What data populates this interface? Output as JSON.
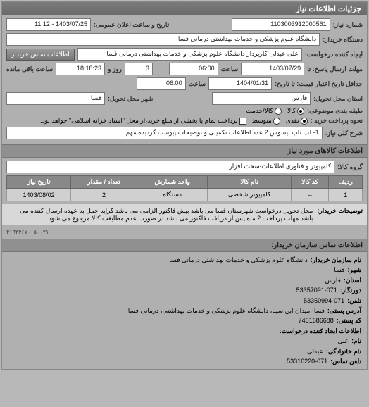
{
  "header": {
    "title": "جزئیات اطلاعات نیاز"
  },
  "form": {
    "request_no_label": "شماره نیاز:",
    "request_no": "1103003912000561",
    "announce_label": "تاریخ و ساعت اعلان عمومی:",
    "announce_value": "1403/07/25 - 11:12",
    "buyer_label": "دستگاه خریدار:",
    "buyer_value": "دانشگاه علوم پزشکی و خدمات بهداشتی درمانی فسا",
    "creator_label": "ایجاد کننده درخواست:",
    "creator_value": "علی عبدلی کارپرداز دانشگاه علوم پزشکی و خدمات بهداشتی درمانی فسا",
    "contact_btn": "اطلاعات تماس خریدار",
    "deadline_send_label": "مهلت ارسال پاسخ: تا",
    "deadline_send_date": "1403/07/29",
    "time_label": "ساعت",
    "deadline_send_time": "06:00",
    "day_label": "روز و",
    "days_left": "3",
    "hours_left": "18:18:23",
    "hours_left_label": "ساعت باقی مانده",
    "valid_until_label": "حداقل تاریخ اعتبار قیمت: تا تاریخ:",
    "valid_until_date": "1404/01/31",
    "valid_until_time": "06:00",
    "province_label": "استان محل تحویل:",
    "province_value": "فارس",
    "city_label": "شهر محل تحویل:",
    "city_value": "فسا",
    "pack_type_label": "طبقه بندی موضوعی:",
    "radio_all": "کالا",
    "radio_service": "کالا/خدمت",
    "pay_type_label": "نحوه پرداخت خرید :",
    "radio_cash": "نقدی",
    "radio_mid": "متوسط",
    "radio_inst": "پرداخت تمام یا بخشی از مبلغ خرید،از محل \"اسناد خزانه اسلامی\" خواهد بود.",
    "desc_label": "شرح کلی نیاز:",
    "desc_value": "1- لپ تاپ ایسوس 2 عدد اطلاعات تکمیلی و توضیحات پیوست گردیده مهم"
  },
  "goods": {
    "section_title": "اطلاعات کالاهای مورد نیاز",
    "group_label": "گروه کالا:",
    "group_value": "کامپیوتر و فناوری اطلاعات-سخت افزار",
    "cols": [
      "ردیف",
      "کد کالا",
      "نام کالا",
      "واحد شمارش",
      "تعداد / مقدار",
      "تاریخ نیاز"
    ],
    "rows": [
      [
        "1",
        "--",
        "کامپیوتر شخصی",
        "دستگاه",
        "2",
        "1403/08/02"
      ]
    ]
  },
  "notes": {
    "label": "توضیحات خریدار:",
    "text": "محل تحویل درخواست شهرستان فسا می باشد پیش فاکتور الزامی می باشد کرایه حمل به عهده ارسال کننده می باشد مهلت پرداخت 2 ماه پس از دریافت فاکتور می باشد در صورت عدم مطابقت کالا مرجوع می شود"
  },
  "footer_num": "۰۲۱–۴۱۹۳۴۶۷۰۰۵",
  "contact": {
    "section_title": "اطلاعات تماس سازمان خریدار:",
    "org_label": "نام سازمان خریدار:",
    "org_value": "دانشگاه علوم پزشکی و خدمات بهداشتی درمانی فسا",
    "city_label": "شهر:",
    "city_value": "فسا",
    "province_label": "استان:",
    "province_value": "فارس",
    "fax_label": "دورنگار:",
    "fax_value": "53357091-071",
    "tel_label": "تلفن:",
    "tel_value": "53350994-071",
    "address_label": "آدرس پستی:",
    "address_value": "فسا- میدان ابن سینا، دانشگاه علوم پزشکی و خدمات بهداشتی، درمانی فسا",
    "postcode_label": "کد پستی:",
    "postcode_value": "7461686688",
    "creator_info_label": "اطلاعات ایجاد کننده درخواست:",
    "name_label": "نام:",
    "name_value": "علی",
    "lname_label": "نام خانوادگی:",
    "lname_value": "عبدلی",
    "ctel_label": "تلفن تماس:",
    "ctel_value": "53316220-071"
  }
}
